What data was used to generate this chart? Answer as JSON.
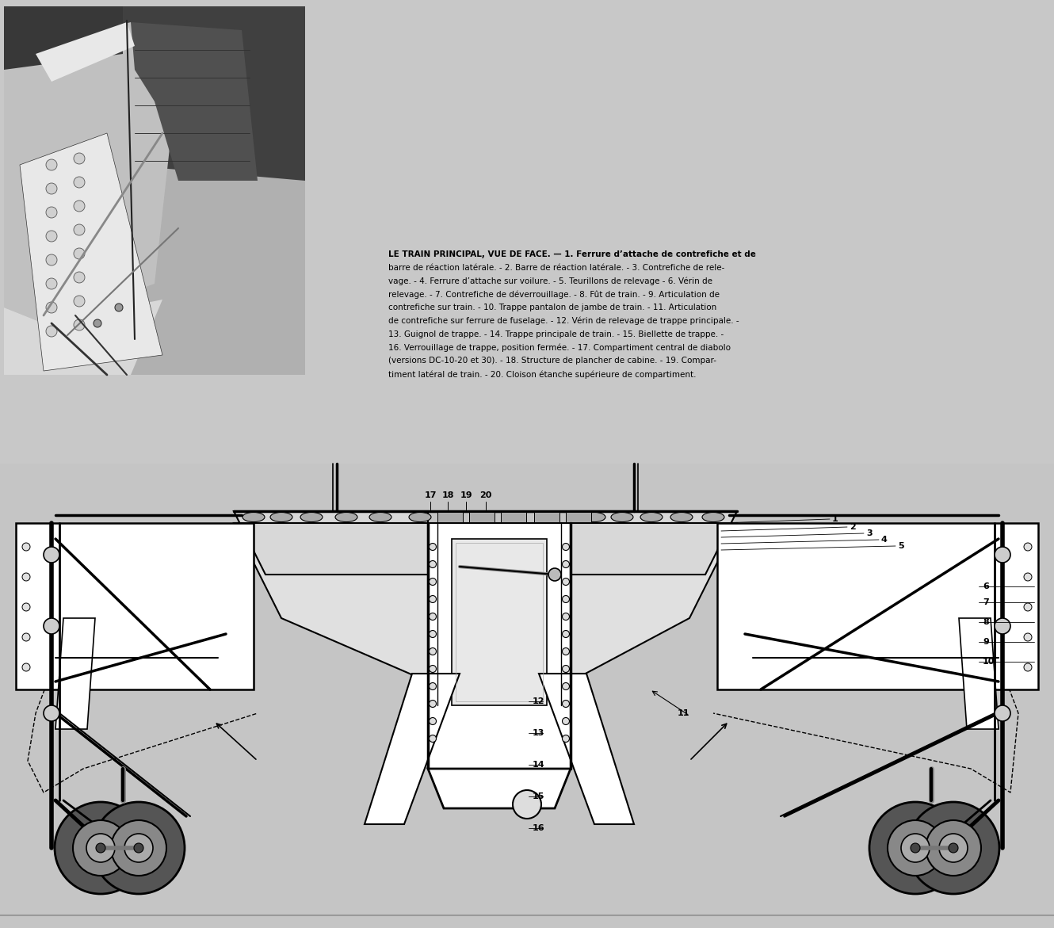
{
  "bg_color": "#c8c8c8",
  "photo_region": [
    0,
    0,
    390,
    490
  ],
  "text_region": [
    490,
    305,
    840,
    490
  ],
  "drawing_region": [
    0,
    490,
    1330,
    1171
  ],
  "description_lines": [
    "LE TRAIN PRINCIPAL, VUE DE FACE. — 1. Ferrure d’attache de contrefiche et de",
    "barre de réaction latérale. - 2. Barre de réaction latérale. - 3. Contrefiche de rele-",
    "vage. - 4. Ferrure d’attache sur voilure. - 5. Teurillons de relevage - 6. Vérin de",
    "relevage. - 7. Contrefiche de déverrouillage. - 8. Fût de train. - 9. Articulation de",
    "contrefiche sur train. - 10. Trappe pantalon de jambe de train. - 11. Articulation",
    "de contrefiche sur ferrure de fuselage. - 12. Vérin de relevage de trappe principale. -",
    "13. Guignol de trappe. - 14. Trappe principale de train. - 15. Biellette de trappe. -",
    "16. Verrouillage de trappe, position fermée. - 17. Compartiment central de diabolo",
    "(versions DC-10-20 et 30). - 18. Structure de plancher de cabine. - 19. Compar-",
    "timent latéral de train. - 20. Cloison étanche supérieure de compartiment."
  ]
}
